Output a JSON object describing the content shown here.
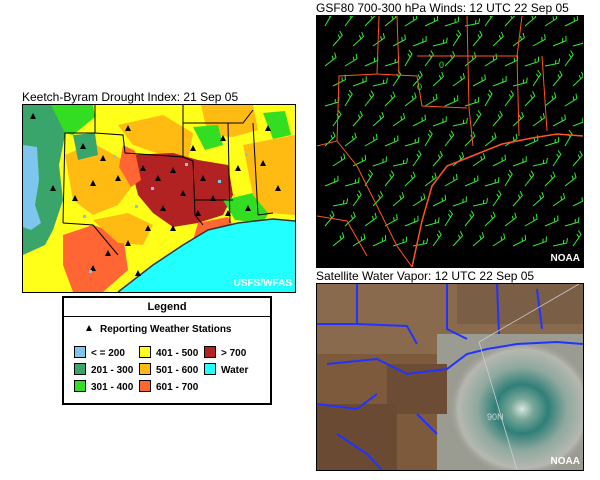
{
  "kbdi": {
    "title": "Keetch-Byram Drought Index: 21 Sep 05",
    "credit": "USFS/WFAS"
  },
  "legend": {
    "title": "Legend",
    "stations_label": "Reporting Weather Stations",
    "items": [
      {
        "label": "< = 200",
        "color": "#7ec6ee"
      },
      {
        "label": "201 - 300",
        "color": "#3aa56b"
      },
      {
        "label": "301 - 400",
        "color": "#33dd22"
      },
      {
        "label": "401 - 500",
        "color": "#ffff1a"
      },
      {
        "label": "501 - 600",
        "color": "#ffbb11"
      },
      {
        "label": "601 - 700",
        "color": "#ff6633"
      },
      {
        "label": "> 700",
        "color": "#b22222"
      },
      {
        "label": "Water",
        "color": "#22ffff"
      }
    ]
  },
  "winds": {
    "title": "GSF80 700-300 hPa Winds: 12 UTC 22 Sep 05",
    "credit": "NOAA",
    "contour_labels": [
      "0",
      "0"
    ]
  },
  "vapor": {
    "title": "Satellite Water Vapor: 12 UTC 22 Sep 05",
    "credit": "NOAA",
    "storm_label": "90N"
  }
}
